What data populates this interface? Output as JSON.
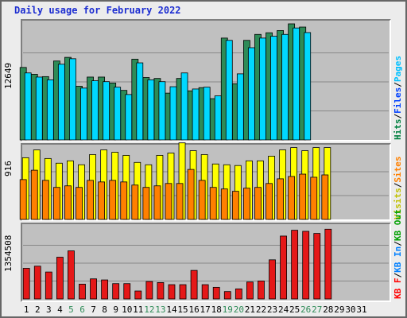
{
  "chart_data": {
    "title": "Daily usage for February 2022",
    "type": "bar",
    "x": [
      "1",
      "2",
      "3",
      "4",
      "5",
      "6",
      "7",
      "8",
      "9",
      "10",
      "11",
      "12",
      "13",
      "14",
      "15",
      "16",
      "17",
      "18",
      "19",
      "20",
      "21",
      "22",
      "23",
      "24",
      "25",
      "26",
      "27",
      "28",
      "29",
      "30",
      "31"
    ],
    "weekend_days": [
      "5",
      "6",
      "12",
      "13",
      "19",
      "20",
      "26",
      "27"
    ],
    "panels": [
      {
        "id": "top",
        "ymax_label": "12649",
        "ymax": 12649,
        "grid": true,
        "legend": [
          {
            "text": "Hits",
            "color": "#008040"
          },
          {
            "text": "/",
            "color": "#000000"
          },
          {
            "text": "Files",
            "color": "#0040ff"
          },
          {
            "text": "/",
            "color": "#000000"
          },
          {
            "text": "Pages",
            "color": "#00c0ff"
          }
        ],
        "series": [
          {
            "name": "Hits",
            "color": "#2e8b57",
            "values": [
              7900,
              7150,
              6900,
              8600,
              9000,
              5850,
              6850,
              6850,
              6200,
              5400,
              8800,
              6800,
              6700,
              5100,
              6700,
              5350,
              5700,
              4500,
              11100,
              6120,
              10850,
              11500,
              11680,
              11920,
              12650,
              12300
            ]
          },
          {
            "name": "Files",
            "color": "#1a3cb8",
            "values": [
              0,
              0,
              0,
              0,
              0,
              0,
              0,
              0,
              0,
              0,
              0,
              0,
              0,
              0,
              0,
              0,
              0,
              0,
              0,
              0,
              0,
              0,
              0,
              0,
              0,
              0
            ]
          },
          {
            "name": "Pages",
            "color": "#00d8ff",
            "values": [
              7300,
              6850,
              6550,
              8250,
              8850,
              5650,
              6450,
              6350,
              5750,
              4950,
              8400,
              6550,
              6350,
              5800,
              7300,
              5550,
              5750,
              4800,
              10850,
              7200,
              10050,
              11100,
              11300,
              11500,
              12200,
              11700
            ]
          }
        ]
      },
      {
        "id": "mid",
        "ymax_label": "916",
        "ymax": 916,
        "grid": true,
        "legend": [
          {
            "text": "Visits",
            "color": "#c0c000"
          },
          {
            "text": "/",
            "color": "#000000"
          },
          {
            "text": "Sites",
            "color": "#ff8000"
          }
        ],
        "series": [
          {
            "name": "Visits",
            "color": "#ffff00",
            "values": [
              790,
              890,
              780,
              720,
              750,
              700,
              830,
              890,
              860,
              820,
              730,
              700,
              820,
              850,
              980,
              880,
              830,
              710,
              700,
              690,
              750,
              750,
              810,
              890,
              920,
              880,
              920,
              920
            ]
          },
          {
            "name": "Sites",
            "color": "#ff8000",
            "values": [
              510,
              630,
              500,
              410,
              430,
              410,
              500,
              480,
              500,
              480,
              440,
              410,
              430,
              460,
              460,
              640,
              500,
              410,
              390,
              360,
              400,
              410,
              460,
              520,
              550,
              580,
              540,
              570
            ]
          }
        ]
      },
      {
        "id": "bot",
        "ymax_label": "1354508",
        "ymax": 1354508,
        "grid": true,
        "legend": [
          {
            "text": "KB F",
            "color": "#ff0000"
          },
          {
            "text": "/",
            "color": "#000000"
          },
          {
            "text": "KB In",
            "color": "#0080ff"
          },
          {
            "text": "/",
            "color": "#000000"
          },
          {
            "text": "KB Out",
            "color": "#00a000"
          }
        ],
        "series": [
          {
            "name": "KB F",
            "color": "#e51818",
            "values": [
              580000,
              620000,
              510000,
              790000,
              910000,
              280000,
              380000,
              360000,
              290000,
              290000,
              150000,
              330000,
              310000,
              270000,
              270000,
              540000,
              270000,
              220000,
              140000,
              190000,
              320000,
              340000,
              740000,
              1190000,
              1300000,
              1280000,
              1240000,
              1320000
            ]
          }
        ]
      }
    ]
  }
}
